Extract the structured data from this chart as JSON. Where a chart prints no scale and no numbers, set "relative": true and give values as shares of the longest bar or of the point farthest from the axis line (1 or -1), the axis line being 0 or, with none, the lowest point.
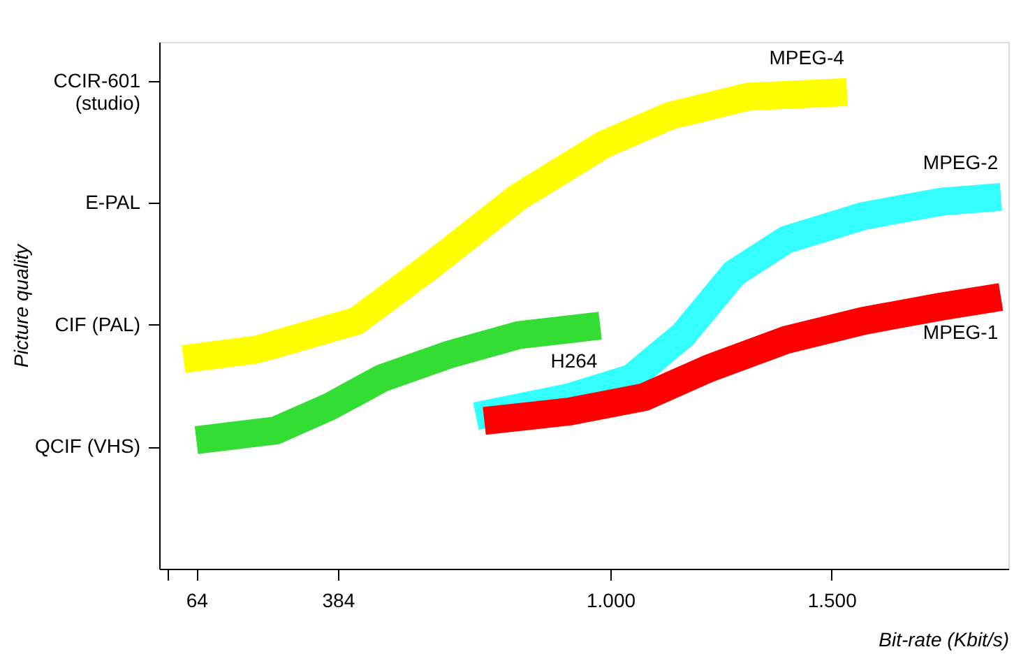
{
  "chart_data": {
    "type": "line",
    "relative": true,
    "xlabel": "Bit-rate (Kbit/s)",
    "xlim": [
      -20,
      1900
    ],
    "xticks": [
      {
        "value": 0,
        "label": null
      },
      64,
      384,
      {
        "value": 1000,
        "label": "1.000"
      },
      {
        "value": 1500,
        "label": "1.500"
      }
    ],
    "annotations": [
      "QCIF (VHS)",
      "CIF (PAL)",
      "E-PAL",
      "CCIR-601 (studio)",
      "Picture quality"
    ],
    "marker": "none",
    "line_style": "solid",
    "series": [
      {
        "name": "MPEG-4",
        "color": "#ffff00",
        "x": [
          35,
          201,
          426,
          600,
          792,
          985,
          1134,
          1310,
          1535
        ],
        "values": [
          0.44,
          0.46,
          0.52,
          0.64,
          0.78,
          0.89,
          0.95,
          0.99,
          1.0
        ]
      },
      {
        "name": "H264",
        "color": "#33dd33",
        "x": [
          64,
          243,
          365,
          484,
          638,
          792,
          977
        ],
        "values": [
          0.27,
          0.29,
          0.34,
          0.4,
          0.45,
          0.49,
          0.51
        ]
      },
      {
        "name": "MPEG-2",
        "color": "#33ffff",
        "x": [
          696,
          908,
          1047,
          1164,
          1280,
          1397,
          1572,
          1748,
          1883
        ],
        "values": [
          0.32,
          0.36,
          0.4,
          0.49,
          0.62,
          0.69,
          0.74,
          0.77,
          0.78
        ]
      },
      {
        "name": "MPEG-1",
        "color": "#ff0000",
        "x": [
          715,
          908,
          1076,
          1222,
          1397,
          1572,
          1748,
          1883
        ],
        "values": [
          0.31,
          0.33,
          0.36,
          0.42,
          0.48,
          0.52,
          0.55,
          0.57
        ]
      }
    ]
  }
}
